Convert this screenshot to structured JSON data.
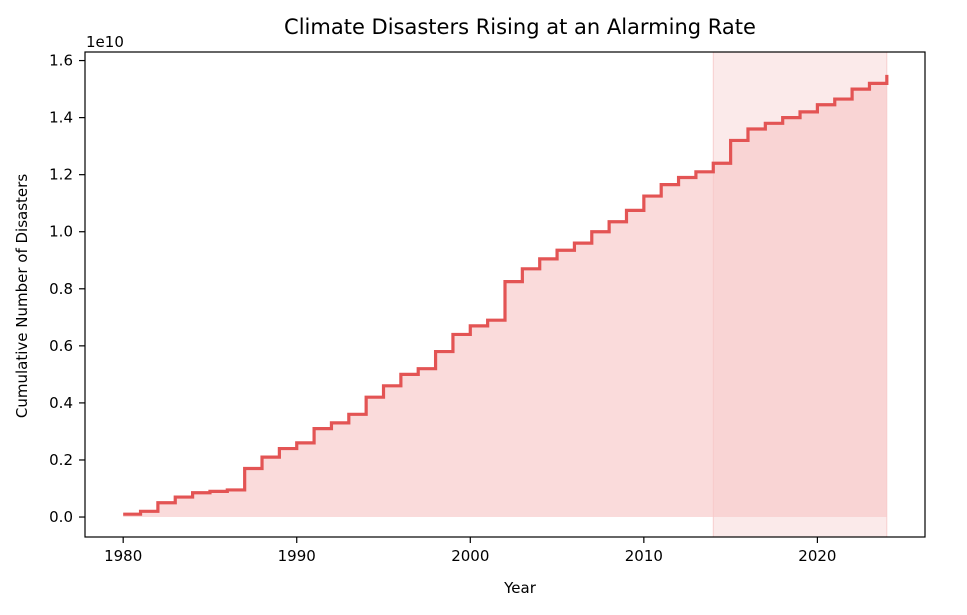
{
  "chart_data": {
    "type": "area",
    "title": "Climate Disasters Rising at an Alarming Rate",
    "xlabel": "Year",
    "ylabel": "Cumulative Number of Disasters",
    "y_offset_label": "1e10",
    "xlim": [
      1977.8,
      2026.2
    ],
    "ylim": [
      -0.07,
      1.63
    ],
    "y_unit_multiplier": 10000000000,
    "x_ticks": [
      1980,
      1990,
      2000,
      2010,
      2020
    ],
    "x_tick_labels": [
      "1980",
      "1990",
      "2000",
      "2010",
      "2020"
    ],
    "y_ticks": [
      0.0,
      0.2,
      0.4,
      0.6,
      0.8,
      1.0,
      1.2,
      1.4,
      1.6
    ],
    "y_tick_labels": [
      "0.0",
      "0.2",
      "0.4",
      "0.6",
      "0.8",
      "1.0",
      "1.2",
      "1.4",
      "1.6"
    ],
    "grid": false,
    "step_style": "post",
    "highlight_span": {
      "x_start": 2014,
      "x_end": 2024
    },
    "colors": {
      "line": "#e35454",
      "fill": "#f7c8c8",
      "highlight": "#f3b8b8"
    },
    "series": [
      {
        "x": [
          1980,
          1981,
          1982,
          1983,
          1984,
          1985,
          1986,
          1987,
          1988,
          1989,
          1990,
          1991,
          1992,
          1993,
          1994,
          1995,
          1996,
          1997,
          1998,
          1999,
          2000,
          2001,
          2002,
          2003,
          2004,
          2005,
          2006,
          2007,
          2008,
          2009,
          2010,
          2011,
          2012,
          2013,
          2014,
          2015,
          2016,
          2017,
          2018,
          2019,
          2020,
          2021,
          2022,
          2023,
          2024
        ],
        "y": [
          0.01,
          0.02,
          0.05,
          0.07,
          0.085,
          0.09,
          0.095,
          0.17,
          0.21,
          0.24,
          0.26,
          0.31,
          0.33,
          0.36,
          0.42,
          0.46,
          0.5,
          0.52,
          0.58,
          0.64,
          0.67,
          0.69,
          0.825,
          0.87,
          0.905,
          0.935,
          0.96,
          1.0,
          1.035,
          1.075,
          1.125,
          1.165,
          1.19,
          1.21,
          1.24,
          1.32,
          1.36,
          1.38,
          1.4,
          1.42,
          1.445,
          1.465,
          1.5,
          1.52,
          1.55
        ]
      }
    ]
  }
}
